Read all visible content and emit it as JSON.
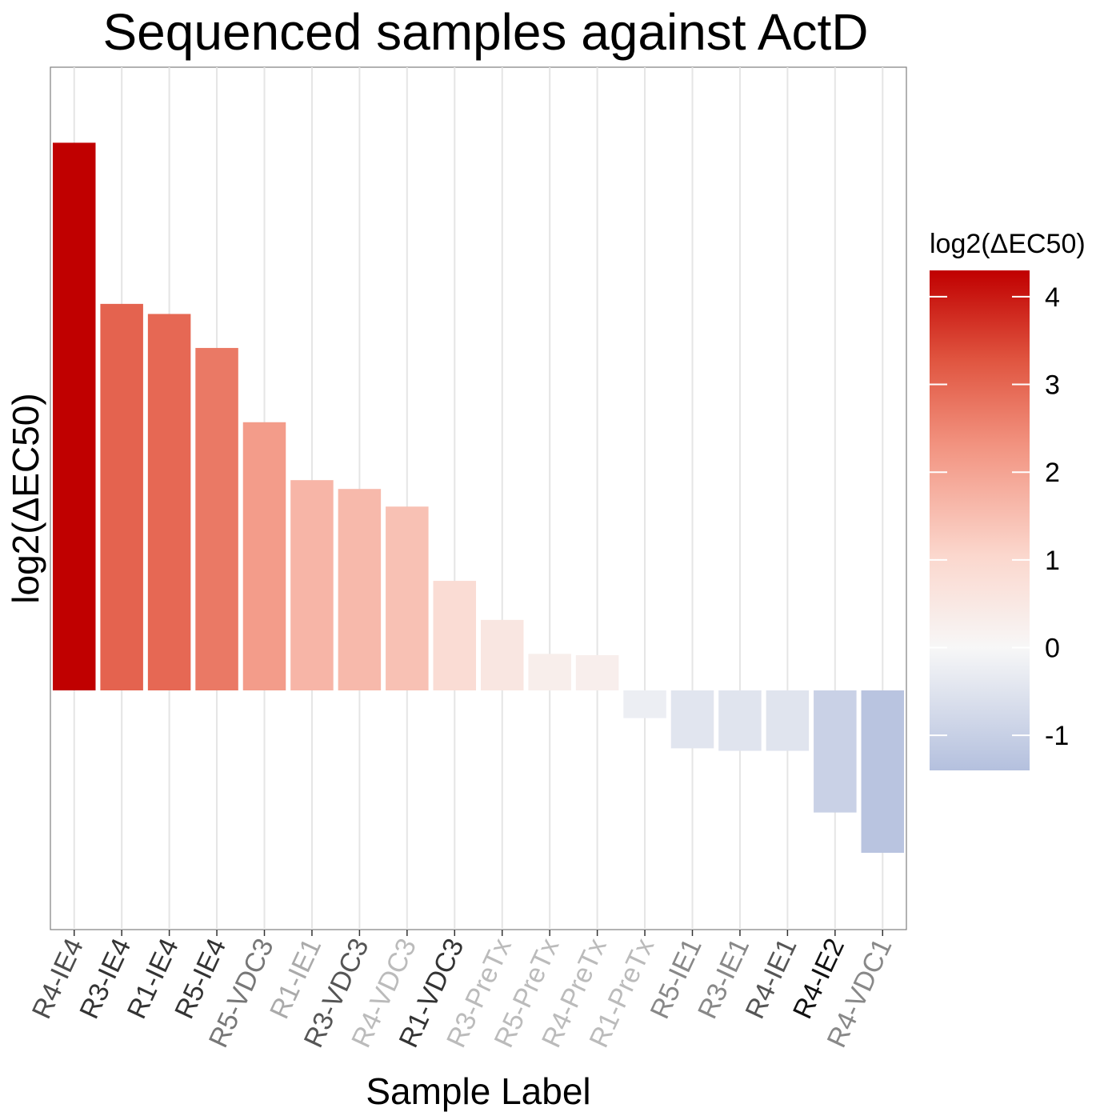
{
  "chart_data": {
    "type": "bar",
    "title": "Sequenced samples against ActD",
    "xlabel": "Sample Label",
    "ylabel": "log2(ΔEC50)",
    "ylim": [
      -1.9,
      4.95
    ],
    "grid": {
      "vertical": true,
      "horizontal": false
    },
    "y_ticks_shown": false,
    "categories": [
      "R4-IE4",
      "R3-IE4",
      "R1-IE4",
      "R5-IE4",
      "R5-VDC3",
      "R1-IE1",
      "R3-VDC3",
      "R4-VDC3",
      "R1-VDC3",
      "R3-PreTx",
      "R5-PreTx",
      "R4-PreTx",
      "R1-PreTx",
      "R5-IE1",
      "R3-IE1",
      "R4-IE1",
      "R4-IE2",
      "R4-VDC1"
    ],
    "values": [
      4.35,
      3.07,
      2.99,
      2.72,
      2.13,
      1.67,
      1.6,
      1.46,
      0.87,
      0.56,
      0.29,
      0.28,
      -0.22,
      -0.46,
      -0.48,
      -0.48,
      -0.97,
      -1.29
    ],
    "label_colors": [
      "#4d4d4d",
      "#333333",
      "#333333",
      "#333333",
      "#777777",
      "#aaaaaa",
      "#555555",
      "#bbbbbb",
      "#333333",
      "#bbbbbb",
      "#bbbbbb",
      "#bbbbbb",
      "#bbbbbb",
      "#888888",
      "#888888",
      "#555555",
      "#111111",
      "#888888"
    ],
    "legend": {
      "title": "log2(ΔEC50)",
      "position": "right",
      "ticks": [
        "4",
        "3",
        "2",
        "1",
        "0",
        "-1"
      ],
      "tick_values": [
        4,
        3,
        2,
        1,
        0,
        -1
      ],
      "range": [
        -1.4,
        4.3
      ]
    },
    "colors": {
      "high": "#c00000",
      "mid_high": "#e05540",
      "mid": "#f7f7f7",
      "low": "#b4c0de",
      "grid": "#e5e5e5",
      "panel_border": "#7f7f7f"
    }
  }
}
